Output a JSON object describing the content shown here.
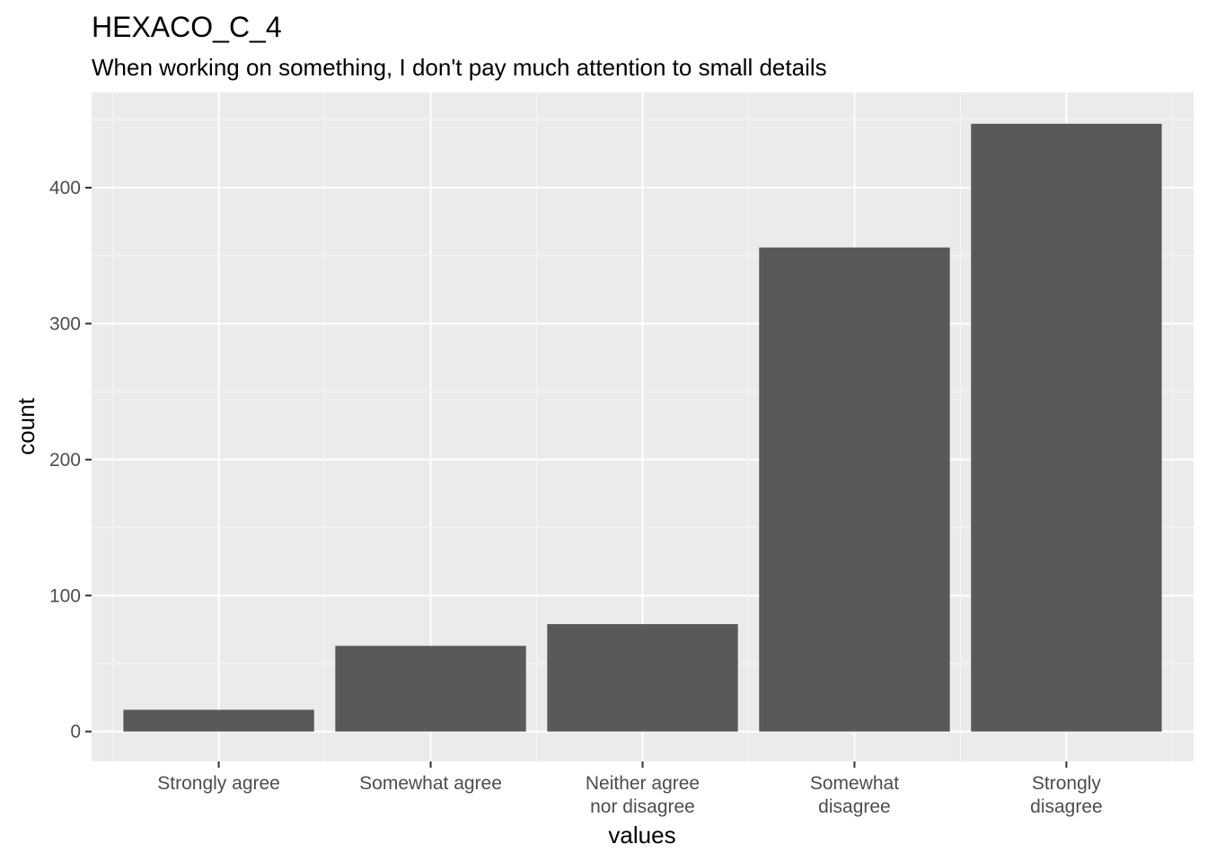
{
  "chart_data": {
    "type": "bar",
    "title": "HEXACO_C_4",
    "subtitle": "When working on something, I don't pay much attention to small details",
    "xlabel": "values",
    "ylabel": "count",
    "categories": [
      [
        "Strongly agree"
      ],
      [
        "Somewhat agree"
      ],
      [
        "Neither agree",
        "nor disagree"
      ],
      [
        "Somewhat",
        "disagree"
      ],
      [
        "Strongly",
        "disagree"
      ]
    ],
    "values": [
      16,
      63,
      79,
      356,
      447
    ],
    "ylim": [
      -22,
      470
    ],
    "yticks": [
      0,
      100,
      200,
      300,
      400
    ],
    "grid": true,
    "legend": "none",
    "colors": {
      "bar": "#595959",
      "panel": "#ebebeb",
      "grid_major": "#ffffff",
      "grid_minor": "#f5f5f5",
      "tick": "#333333"
    }
  }
}
